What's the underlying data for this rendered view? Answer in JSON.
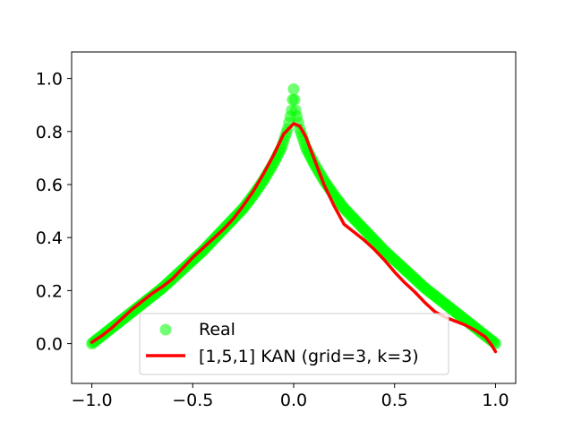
{
  "chart_data": {
    "type": "scatter",
    "title": "",
    "xlabel": "",
    "ylabel": "",
    "xlim": [
      -1.1,
      1.1
    ],
    "ylim": [
      -0.15,
      1.1
    ],
    "x_ticks": [
      -1.0,
      -0.5,
      0.0,
      0.5,
      1.0
    ],
    "x_tick_labels": [
      "−1.0",
      "−0.5",
      "0.0",
      "0.5",
      "1.0"
    ],
    "y_ticks": [
      0.0,
      0.2,
      0.4,
      0.6,
      0.8,
      1.0
    ],
    "y_tick_labels": [
      "0.0",
      "0.2",
      "0.4",
      "0.6",
      "0.8",
      "1.0"
    ],
    "grid": false,
    "legend_position": "lower-center",
    "series": [
      {
        "name": "Real",
        "kind": "scatter",
        "color": "#00ff00",
        "x": [
          -1.0,
          -0.95,
          -0.9,
          -0.85,
          -0.8,
          -0.75,
          -0.7,
          -0.65,
          -0.6,
          -0.55,
          -0.5,
          -0.45,
          -0.4,
          -0.35,
          -0.3,
          -0.25,
          -0.2,
          -0.15,
          -0.1,
          -0.06,
          -0.03,
          -0.01,
          0.0,
          0.01,
          0.03,
          0.06,
          0.1,
          0.15,
          0.2,
          0.25,
          0.3,
          0.35,
          0.4,
          0.45,
          0.5,
          0.55,
          0.6,
          0.65,
          0.7,
          0.75,
          0.8,
          0.85,
          0.9,
          0.95,
          1.0
        ],
        "y": [
          0.0,
          0.03,
          0.06,
          0.09,
          0.12,
          0.15,
          0.18,
          0.21,
          0.245,
          0.28,
          0.315,
          0.35,
          0.39,
          0.43,
          0.47,
          0.51,
          0.56,
          0.615,
          0.68,
          0.74,
          0.81,
          0.88,
          0.96,
          0.88,
          0.81,
          0.74,
          0.68,
          0.615,
          0.56,
          0.51,
          0.47,
          0.43,
          0.39,
          0.35,
          0.315,
          0.28,
          0.245,
          0.21,
          0.18,
          0.15,
          0.12,
          0.09,
          0.06,
          0.03,
          0.0
        ]
      },
      {
        "name": "[1,5,1] KAN (grid=3, k=3)",
        "kind": "line",
        "color": "#ff0000",
        "x": [
          -1.0,
          -0.95,
          -0.9,
          -0.85,
          -0.8,
          -0.75,
          -0.7,
          -0.65,
          -0.6,
          -0.55,
          -0.5,
          -0.45,
          -0.4,
          -0.35,
          -0.3,
          -0.25,
          -0.2,
          -0.15,
          -0.1,
          -0.05,
          0.0,
          0.03,
          0.06,
          0.1,
          0.15,
          0.2,
          0.25,
          0.3,
          0.35,
          0.4,
          0.45,
          0.5,
          0.55,
          0.6,
          0.65,
          0.7,
          0.75,
          0.8,
          0.85,
          0.9,
          0.95,
          0.98,
          1.0
        ],
        "y": [
          0.005,
          0.03,
          0.06,
          0.095,
          0.13,
          0.16,
          0.19,
          0.215,
          0.245,
          0.285,
          0.325,
          0.36,
          0.395,
          0.43,
          0.47,
          0.52,
          0.575,
          0.64,
          0.71,
          0.79,
          0.83,
          0.82,
          0.78,
          0.7,
          0.6,
          0.52,
          0.45,
          0.42,
          0.39,
          0.355,
          0.315,
          0.27,
          0.23,
          0.195,
          0.155,
          0.12,
          0.1,
          0.085,
          0.07,
          0.05,
          0.025,
          -0.005,
          -0.03
        ]
      }
    ]
  }
}
